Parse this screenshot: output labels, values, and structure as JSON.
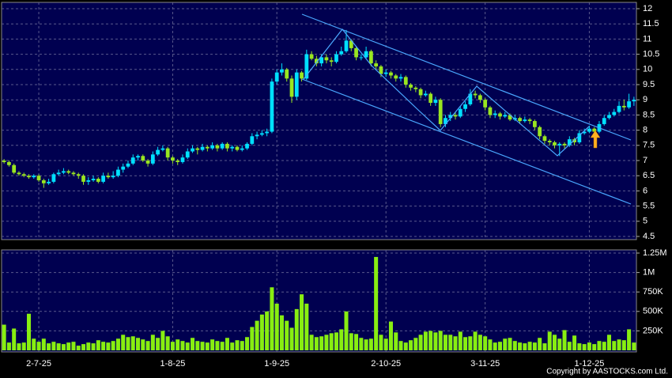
{
  "chart_data": [
    {
      "type": "candlestick",
      "up_color": "#00e0ff",
      "down_color": "#99e620",
      "ylim": [
        4.5,
        12
      ],
      "yticks": [
        12,
        11.5,
        11,
        10.5,
        10,
        9.5,
        9,
        8.5,
        8,
        7.5,
        7,
        6.5,
        6,
        5.5,
        5,
        4.5
      ],
      "grid": true,
      "open": [
        7.0,
        6.95,
        6.85,
        6.6,
        6.55,
        6.5,
        6.45,
        6.5,
        6.35,
        6.25,
        6.3,
        6.55,
        6.6,
        6.65,
        6.6,
        6.55,
        6.5,
        6.3,
        6.35,
        6.4,
        6.3,
        6.5,
        6.45,
        6.5,
        6.7,
        6.8,
        6.9,
        7.1,
        7.15,
        7.0,
        6.9,
        7.2,
        7.35,
        7.4,
        7.1,
        7.0,
        6.95,
        7.1,
        7.3,
        7.4,
        7.35,
        7.45,
        7.4,
        7.5,
        7.4,
        7.55,
        7.4,
        7.45,
        7.35,
        7.4,
        7.55,
        7.8,
        7.85,
        7.9,
        7.95,
        9.6,
        9.9,
        10.0,
        9.7,
        9.1,
        9.9,
        9.7,
        10.5,
        10.35,
        10.2,
        10.4,
        10.3,
        10.25,
        10.5,
        10.6,
        10.95,
        10.7,
        10.4,
        10.4,
        10.6,
        10.2,
        10.1,
        9.85,
        9.9,
        9.8,
        9.7,
        9.75,
        9.5,
        9.4,
        9.35,
        9.15,
        9.2,
        8.9,
        9.0,
        8.2,
        8.4,
        8.5,
        8.45,
        8.7,
        8.85,
        9.2,
        9.15,
        9.0,
        8.75,
        8.5,
        8.55,
        8.45,
        8.5,
        8.35,
        8.4,
        8.3,
        8.35,
        8.3,
        8.1,
        7.8,
        7.65,
        7.6,
        7.5,
        7.55,
        7.5,
        7.7,
        7.6,
        7.9,
        7.95,
        8.05,
        7.95,
        8.2,
        8.4,
        8.5,
        8.6,
        8.8,
        8.75,
        8.95
      ],
      "high": [
        7.05,
        7.0,
        6.9,
        6.65,
        6.6,
        6.55,
        6.55,
        6.55,
        6.4,
        6.4,
        6.6,
        6.7,
        6.75,
        6.7,
        6.65,
        6.6,
        6.55,
        6.45,
        6.5,
        6.45,
        6.6,
        6.6,
        6.65,
        6.8,
        6.9,
        7.0,
        7.2,
        7.2,
        7.2,
        7.05,
        7.3,
        7.45,
        7.5,
        7.45,
        7.15,
        7.05,
        7.2,
        7.4,
        7.5,
        7.45,
        7.55,
        7.5,
        7.6,
        7.55,
        7.6,
        7.6,
        7.5,
        7.5,
        7.5,
        7.6,
        7.9,
        7.95,
        8.0,
        8.05,
        9.7,
        10.0,
        10.2,
        10.05,
        9.8,
        10.0,
        9.95,
        10.65,
        10.6,
        10.45,
        10.5,
        10.5,
        10.4,
        10.6,
        10.75,
        11.3,
        11.0,
        10.75,
        10.5,
        10.75,
        10.65,
        10.3,
        10.15,
        10.0,
        9.95,
        9.85,
        9.85,
        9.8,
        9.55,
        9.45,
        9.4,
        9.3,
        9.25,
        9.1,
        9.05,
        8.5,
        8.6,
        8.6,
        8.8,
        8.95,
        9.35,
        9.3,
        9.2,
        9.05,
        8.8,
        8.65,
        8.6,
        8.6,
        8.55,
        8.5,
        8.45,
        8.45,
        8.4,
        8.35,
        8.15,
        7.85,
        7.7,
        7.65,
        7.6,
        7.6,
        7.8,
        7.75,
        8.0,
        8.05,
        8.15,
        8.1,
        8.3,
        8.5,
        8.6,
        8.7,
        8.95,
        9.0,
        9.2,
        9.1
      ],
      "low": [
        6.9,
        6.8,
        6.55,
        6.5,
        6.45,
        6.4,
        6.4,
        6.3,
        6.1,
        6.2,
        6.25,
        6.5,
        6.55,
        6.55,
        6.5,
        6.4,
        6.2,
        6.2,
        6.3,
        6.25,
        6.25,
        6.4,
        6.4,
        6.45,
        6.6,
        6.75,
        6.85,
        7.0,
        6.95,
        6.8,
        6.85,
        7.15,
        7.3,
        7.0,
        6.9,
        6.85,
        6.9,
        7.05,
        7.25,
        7.2,
        7.3,
        7.3,
        7.35,
        7.3,
        7.35,
        7.3,
        7.3,
        7.3,
        7.3,
        7.35,
        7.5,
        7.7,
        7.8,
        7.8,
        7.9,
        9.5,
        9.8,
        9.6,
        8.9,
        9.0,
        9.6,
        9.65,
        10.3,
        10.1,
        10.1,
        10.2,
        10.1,
        10.2,
        10.45,
        10.55,
        10.6,
        10.3,
        10.3,
        10.35,
        10.1,
        10.0,
        9.75,
        9.75,
        9.7,
        9.6,
        9.6,
        9.4,
        9.3,
        9.25,
        9.05,
        9.1,
        8.8,
        8.8,
        8.1,
        8.1,
        8.3,
        8.35,
        8.4,
        8.6,
        8.8,
        9.05,
        8.9,
        8.65,
        8.4,
        8.4,
        8.35,
        8.4,
        8.3,
        8.3,
        8.2,
        8.25,
        8.2,
        8.0,
        7.7,
        7.55,
        7.5,
        7.4,
        7.15,
        7.4,
        7.45,
        7.5,
        7.55,
        7.85,
        7.9,
        7.85,
        7.9,
        8.15,
        8.35,
        8.45,
        8.55,
        8.65,
        8.7,
        8.8
      ],
      "close": [
        6.95,
        6.85,
        6.6,
        6.55,
        6.5,
        6.45,
        6.5,
        6.35,
        6.25,
        6.3,
        6.55,
        6.6,
        6.65,
        6.6,
        6.55,
        6.5,
        6.3,
        6.35,
        6.4,
        6.3,
        6.5,
        6.45,
        6.5,
        6.7,
        6.8,
        6.9,
        7.1,
        7.15,
        7.0,
        6.9,
        7.2,
        7.35,
        7.4,
        7.1,
        7.0,
        6.95,
        7.1,
        7.3,
        7.4,
        7.35,
        7.45,
        7.4,
        7.5,
        7.4,
        7.55,
        7.4,
        7.45,
        7.35,
        7.4,
        7.55,
        7.8,
        7.85,
        7.9,
        7.95,
        9.6,
        9.9,
        10.0,
        9.7,
        9.1,
        9.9,
        9.7,
        10.5,
        10.35,
        10.2,
        10.4,
        10.3,
        10.25,
        10.5,
        10.6,
        10.95,
        10.7,
        10.4,
        10.4,
        10.6,
        10.2,
        10.1,
        9.85,
        9.9,
        9.8,
        9.7,
        9.75,
        9.5,
        9.4,
        9.35,
        9.15,
        9.2,
        8.9,
        9.0,
        8.2,
        8.4,
        8.5,
        8.45,
        8.7,
        8.85,
        9.2,
        9.15,
        9.0,
        8.75,
        8.5,
        8.55,
        8.45,
        8.5,
        8.35,
        8.4,
        8.3,
        8.35,
        8.3,
        8.1,
        7.8,
        7.65,
        7.6,
        7.5,
        7.55,
        7.5,
        7.7,
        7.6,
        7.9,
        7.95,
        8.05,
        7.95,
        8.2,
        8.4,
        8.5,
        8.6,
        8.8,
        8.75,
        8.95,
        9.0
      ]
    },
    {
      "type": "bar",
      "color": "#88ee11",
      "ylim": [
        0,
        1250000
      ],
      "yticks": [
        {
          "value": 1250000,
          "label": "1.25M"
        },
        {
          "value": 1000000,
          "label": "1M"
        },
        {
          "value": 750000,
          "label": "750K"
        },
        {
          "value": 500000,
          "label": "500K"
        },
        {
          "value": 250000,
          "label": "250K"
        }
      ],
      "grid": true,
      "categories": [
        null,
        null,
        null,
        null,
        null,
        null,
        null,
        "2-7-25",
        null,
        null,
        null,
        null,
        null,
        null,
        null,
        null,
        null,
        null,
        null,
        null,
        null,
        null,
        null,
        null,
        null,
        null,
        null,
        null,
        null,
        null,
        null,
        null,
        null,
        null,
        "1-8-25",
        null,
        null,
        null,
        null,
        null,
        null,
        null,
        null,
        null,
        null,
        null,
        null,
        null,
        null,
        null,
        null,
        null,
        null,
        null,
        null,
        "1-9-25",
        null,
        null,
        null,
        null,
        null,
        null,
        null,
        null,
        null,
        null,
        null,
        null,
        null,
        null,
        null,
        null,
        null,
        null,
        null,
        null,
        null,
        "2-10-25",
        null,
        null,
        null,
        null,
        null,
        null,
        null,
        null,
        null,
        null,
        null,
        null,
        null,
        null,
        null,
        null,
        null,
        null,
        null,
        "3-11-25",
        null,
        null,
        null,
        null,
        null,
        null,
        null,
        null,
        null,
        null,
        null,
        null,
        null,
        null,
        null,
        null,
        null,
        null,
        null,
        null,
        "1-12-25",
        null,
        null,
        null,
        null,
        null,
        null,
        null,
        null,
        null
      ],
      "values": [
        330000,
        100000,
        280000,
        90000,
        100000,
        470000,
        150000,
        110000,
        150000,
        90000,
        110000,
        90000,
        80000,
        100000,
        110000,
        60000,
        80000,
        100000,
        90000,
        130000,
        110000,
        100000,
        120000,
        150000,
        200000,
        170000,
        180000,
        160000,
        140000,
        120000,
        200000,
        160000,
        250000,
        180000,
        110000,
        140000,
        120000,
        100000,
        160000,
        120000,
        110000,
        100000,
        140000,
        120000,
        110000,
        160000,
        100000,
        130000,
        120000,
        170000,
        300000,
        380000,
        460000,
        500000,
        810000,
        600000,
        450000,
        380000,
        290000,
        530000,
        720000,
        600000,
        200000,
        170000,
        180000,
        200000,
        220000,
        230000,
        270000,
        500000,
        220000,
        210000,
        160000,
        140000,
        150000,
        1200000,
        200000,
        150000,
        370000,
        230000,
        120000,
        100000,
        130000,
        160000,
        200000,
        240000,
        250000,
        230000,
        250000,
        200000,
        200000,
        180000,
        240000,
        170000,
        180000,
        240000,
        200000,
        180000,
        140000,
        100000,
        110000,
        150000,
        160000,
        120000,
        100000,
        90000,
        110000,
        100000,
        160000,
        90000,
        240000,
        200000,
        150000,
        260000,
        110000,
        190000,
        90000,
        80000,
        100000,
        80000,
        120000,
        110000,
        200000,
        120000,
        140000,
        130000,
        270000,
        100000
      ]
    }
  ],
  "footer": "Copyright by AASTOCKS.com Ltd."
}
